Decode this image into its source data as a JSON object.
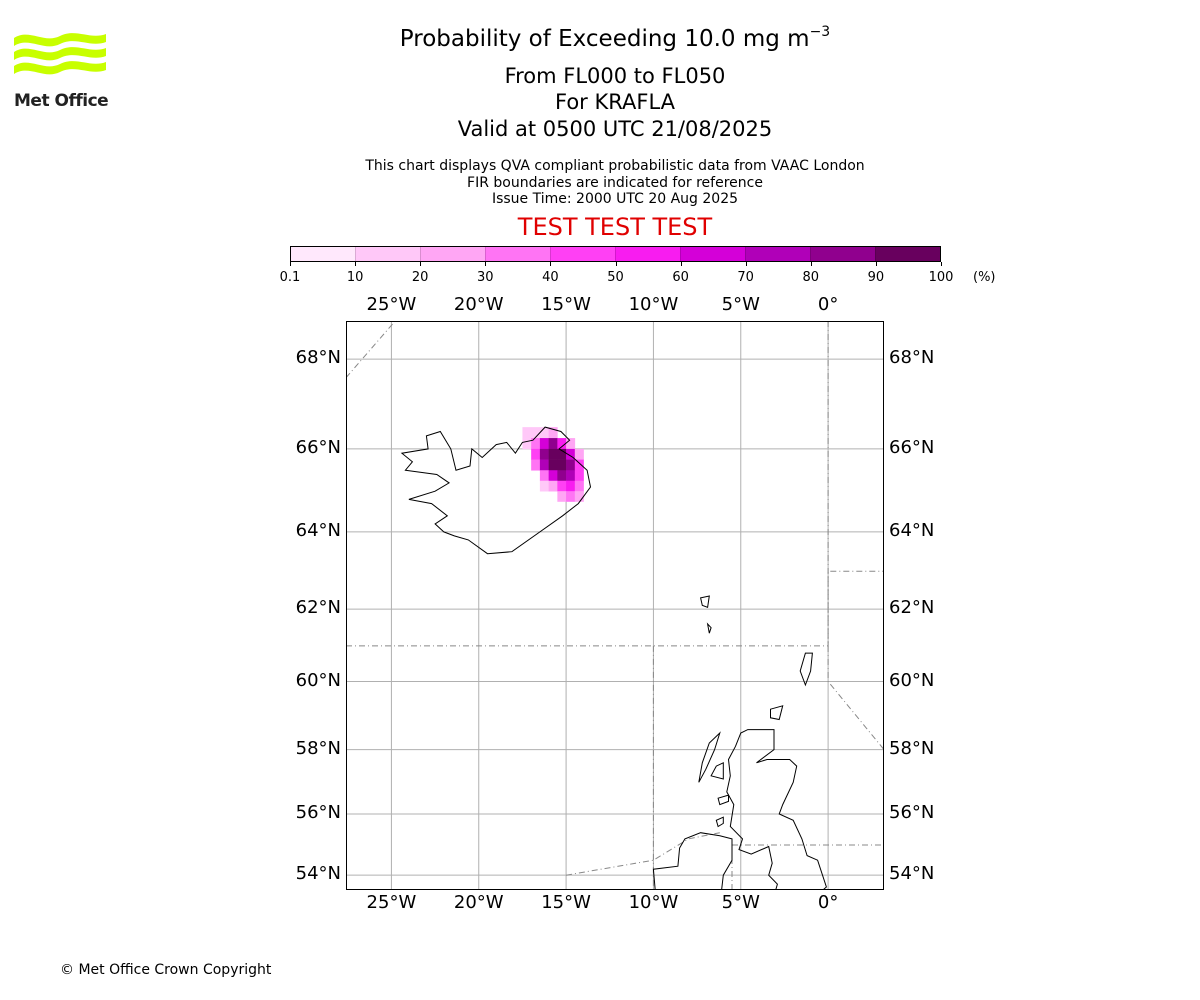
{
  "logo": {
    "text": "Met Office",
    "color": "#c8ff00"
  },
  "title": {
    "main": "Probability of Exceeding 10.0 mg m",
    "sup": "−3",
    "range": "From FL000 to FL050",
    "volcano": "For KRAFLA",
    "valid": "Valid at 0500 UTC 21/08/2025"
  },
  "description": {
    "line1": "This chart displays QVA compliant probabilistic data from VAAC London",
    "line2": "FIR boundaries are indicated for reference",
    "line3": "Issue Time: 2000 UTC 20 Aug 2025"
  },
  "banner": "TEST TEST TEST",
  "colorbar": {
    "ticks": [
      "0.1",
      "10",
      "20",
      "30",
      "40",
      "50",
      "60",
      "70",
      "80",
      "90",
      "100"
    ],
    "unit": "(%)",
    "colors": [
      "#ffe8fc",
      "#ffc8f8",
      "#ffa6f4",
      "#ff74f4",
      "#ff40f4",
      "#f81cf0",
      "#d400d8",
      "#b000b8",
      "#90008e",
      "#68005e"
    ]
  },
  "map": {
    "lon_labels": [
      "25°W",
      "20°W",
      "15°W",
      "10°W",
      "5°W",
      "0°"
    ],
    "lat_labels": [
      "68°N",
      "66°N",
      "64°N",
      "62°N",
      "60°N",
      "58°N",
      "56°N",
      "54°N"
    ],
    "lon_range": [
      -27.6,
      3.2
    ],
    "lat_range": [
      53.5,
      68.8
    ],
    "volcano": "KRAFLA"
  },
  "footer": {
    "copyright": "© Met Office Crown Copyright"
  }
}
